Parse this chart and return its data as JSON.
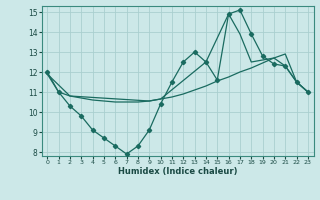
{
  "xlabel": "Humidex (Indice chaleur)",
  "bg_color": "#cce8e8",
  "grid_color": "#aacfcf",
  "line_color": "#1a6b60",
  "xlim": [
    -0.5,
    23.5
  ],
  "ylim": [
    7.8,
    15.3
  ],
  "xticks": [
    0,
    1,
    2,
    3,
    4,
    5,
    6,
    7,
    8,
    9,
    10,
    11,
    12,
    13,
    14,
    15,
    16,
    17,
    18,
    19,
    20,
    21,
    22,
    23
  ],
  "yticks": [
    8,
    9,
    10,
    11,
    12,
    13,
    14,
    15
  ],
  "line1_x": [
    0,
    1,
    2,
    3,
    4,
    5,
    6,
    7,
    8,
    9,
    10,
    11,
    12,
    13,
    14,
    15,
    16,
    17,
    18,
    19,
    20,
    21,
    22,
    23
  ],
  "line1_y": [
    12.0,
    11.0,
    10.3,
    9.8,
    9.1,
    8.7,
    8.3,
    7.9,
    8.3,
    9.1,
    10.4,
    11.5,
    12.5,
    13.0,
    12.5,
    11.6,
    14.9,
    15.1,
    13.9,
    12.8,
    12.4,
    12.3,
    11.5,
    11.0
  ],
  "line2_x": [
    0,
    1,
    2,
    3,
    4,
    5,
    6,
    7,
    8,
    9,
    10,
    11,
    12,
    13,
    14,
    15,
    16,
    17,
    18,
    19,
    20,
    21,
    22,
    23
  ],
  "line2_y": [
    11.9,
    11.0,
    10.8,
    10.7,
    10.6,
    10.55,
    10.5,
    10.5,
    10.5,
    10.55,
    10.65,
    10.75,
    10.9,
    11.1,
    11.3,
    11.55,
    11.75,
    12.0,
    12.2,
    12.45,
    12.7,
    12.9,
    11.5,
    11.0
  ],
  "line3_x": [
    0,
    2,
    9,
    10,
    14,
    16,
    17,
    18,
    20,
    21,
    22,
    23
  ],
  "line3_y": [
    11.9,
    10.8,
    10.55,
    10.65,
    12.5,
    14.9,
    13.9,
    12.5,
    12.7,
    12.3,
    11.5,
    11.0
  ]
}
